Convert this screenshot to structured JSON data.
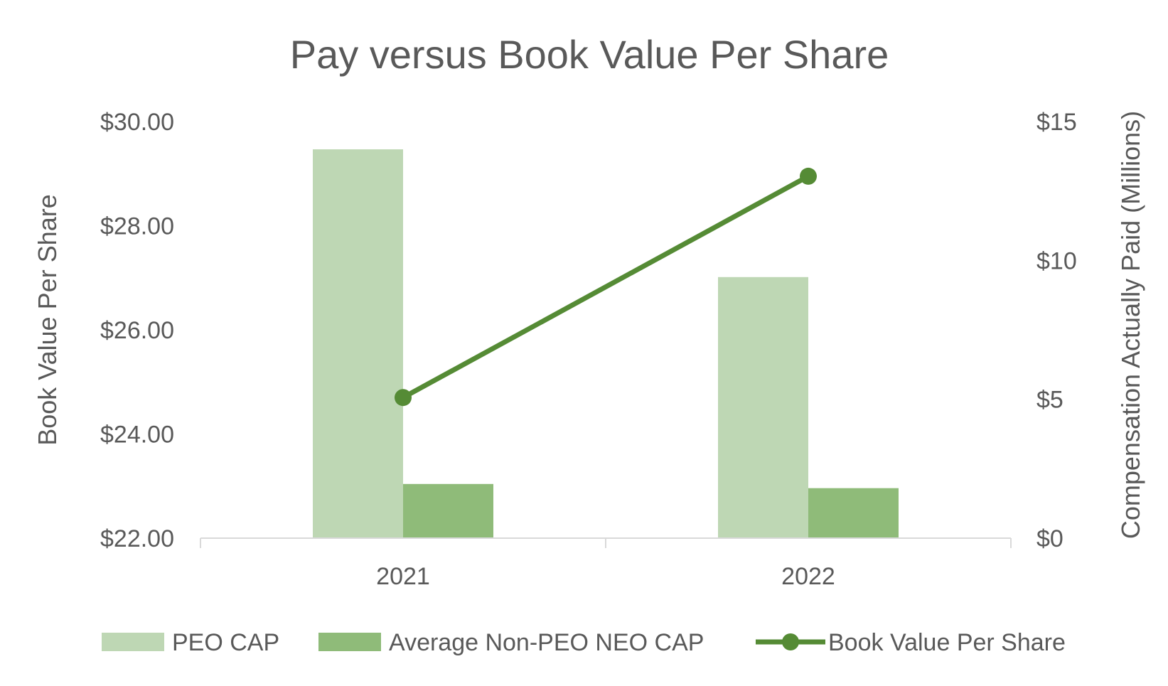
{
  "chart_data": {
    "type": "bar",
    "title": "Pay versus Book Value Per Share",
    "categories": [
      "2021",
      "2022"
    ],
    "y_left": {
      "label": "Book Value Per Share",
      "lim": [
        22,
        30
      ],
      "ticks": [
        22,
        24,
        26,
        28,
        30
      ],
      "tick_labels": [
        "$22.00",
        "$24.00",
        "$26.00",
        "$28.00",
        "$30.00"
      ]
    },
    "y_right": {
      "label": "Compensation Actually Paid (Millions)",
      "lim": [
        0,
        15
      ],
      "ticks": [
        0,
        5,
        10,
        15
      ],
      "tick_labels": [
        "$0",
        "$5",
        "$10",
        "$15"
      ]
    },
    "series": [
      {
        "name": "PEO CAP",
        "kind": "bar",
        "axis": "right",
        "color": "#bed7b4",
        "values": [
          14.0,
          9.4
        ]
      },
      {
        "name": "Average Non-PEO NEO CAP",
        "kind": "bar",
        "axis": "right",
        "color": "#8fbb79",
        "values": [
          1.95,
          1.8
        ]
      },
      {
        "name": "Book Value Per Share",
        "kind": "line",
        "axis": "left",
        "color": "#558b35",
        "values": [
          24.7,
          28.95
        ]
      }
    ],
    "legend_position": "bottom",
    "grid": false
  }
}
